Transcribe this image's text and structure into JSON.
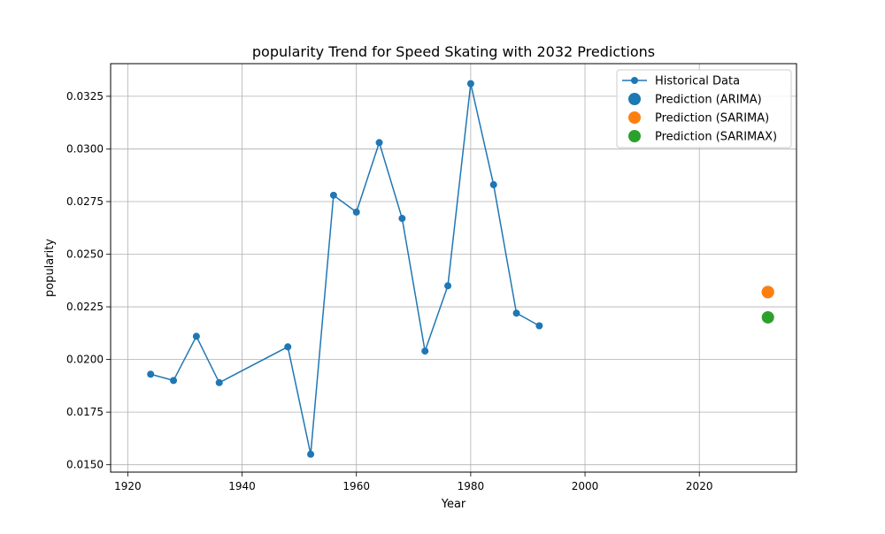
{
  "chart_data": {
    "type": "line",
    "title": "popularity Trend for Speed Skating with 2032 Predictions",
    "xlabel": "Year",
    "ylabel": "popularity",
    "xlim": [
      1917,
      2037
    ],
    "ylim": [
      0.01465,
      0.03405
    ],
    "xticks": [
      1920,
      1940,
      1960,
      1980,
      2000,
      2020
    ],
    "xtick_labels": [
      "1920",
      "1940",
      "1960",
      "1980",
      "2000",
      "2020"
    ],
    "yticks": [
      0.015,
      0.0175,
      0.02,
      0.0225,
      0.025,
      0.0275,
      0.03,
      0.0325
    ],
    "ytick_labels": [
      "0.0150",
      "0.0175",
      "0.0200",
      "0.0225",
      "0.0250",
      "0.0275",
      "0.0300",
      "0.0325"
    ],
    "grid": true,
    "legend_position": "top-right",
    "series": [
      {
        "name": "Historical Data",
        "kind": "line",
        "color": "#1f77b4",
        "x": [
          1924,
          1928,
          1932,
          1936,
          1948,
          1952,
          1956,
          1960,
          1964,
          1968,
          1972,
          1976,
          1980,
          1984,
          1988,
          1992
        ],
        "y": [
          0.0193,
          0.019,
          0.0211,
          0.0189,
          0.0206,
          0.0155,
          0.0278,
          0.027,
          0.0303,
          0.0267,
          0.0204,
          0.0235,
          0.0331,
          0.0283,
          0.0222,
          0.0216
        ]
      },
      {
        "name": "Prediction (ARIMA)",
        "kind": "point",
        "color": "#1f77b4",
        "x": [
          2032
        ],
        "y": [
          0.0232
        ]
      },
      {
        "name": "Prediction (SARIMA)",
        "kind": "point",
        "color": "#ff7f0e",
        "x": [
          2032
        ],
        "y": [
          0.0232
        ]
      },
      {
        "name": "Prediction (SARIMAX)",
        "kind": "point",
        "color": "#2ca02c",
        "x": [
          2032
        ],
        "y": [
          0.022
        ]
      }
    ]
  }
}
